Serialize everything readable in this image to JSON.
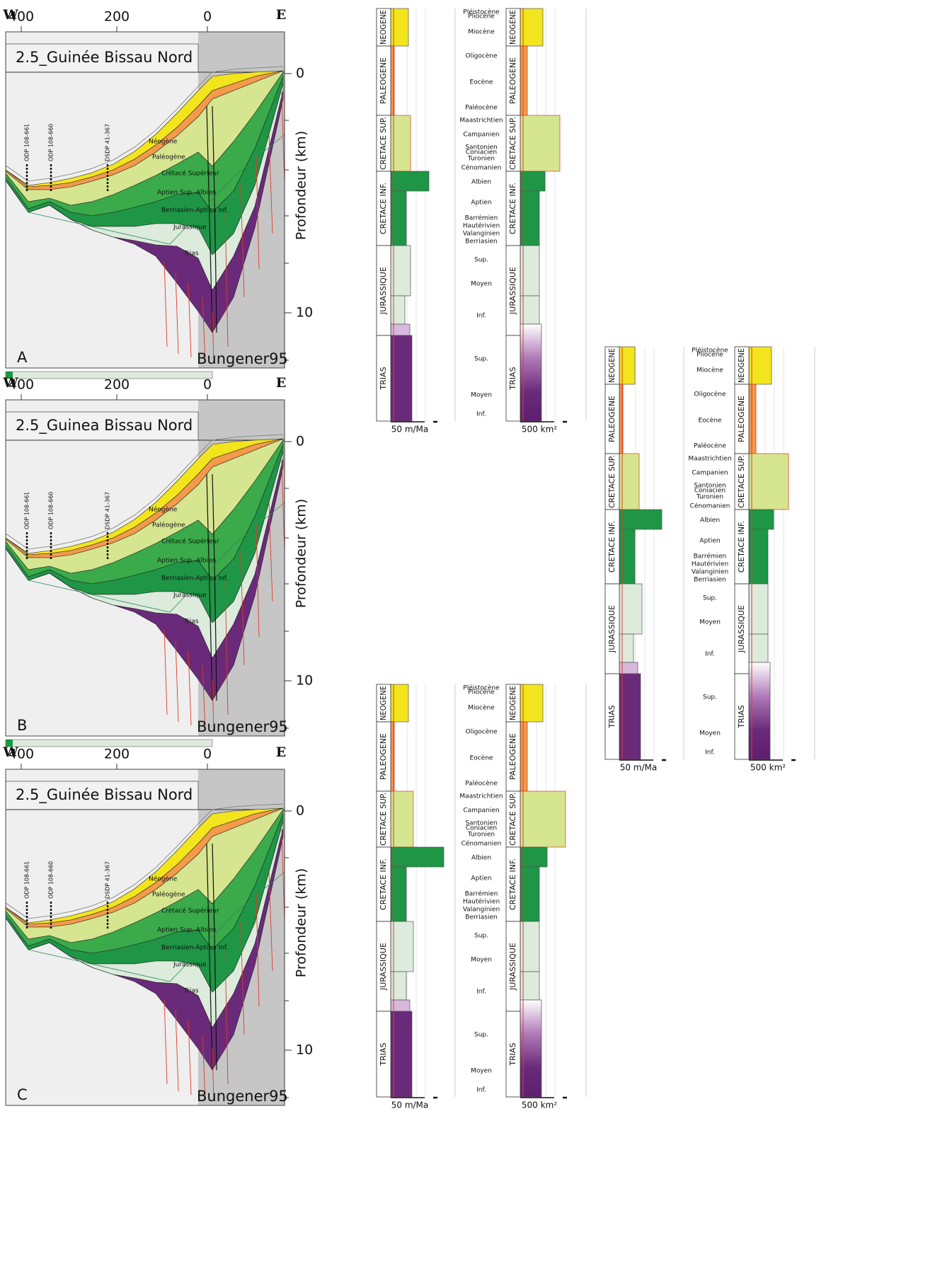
{
  "panels": [
    {
      "label": "A",
      "title": "2.5_Guinée Bissau Nord",
      "source": "Bungener95",
      "west": "W",
      "east": "E",
      "x_ticks": [
        "400",
        "200",
        "0"
      ],
      "y_ticks": [
        "0",
        "10"
      ],
      "y_axis_label": "Profondeur (km)",
      "wells": [
        "ODP 108-661",
        "ODP 108-660",
        "DSDP 41-367"
      ],
      "layers": [
        "Néogène",
        "Paléogène",
        "Crétacé Supérieur",
        "Aptien Sup.-Albien",
        "Berriasien-Aptien Inf.",
        "Jurassique",
        "Trias"
      ]
    },
    {
      "label": "B",
      "title": "2.5_Guinea Bissau Nord",
      "source": "Bungener95",
      "west": "W",
      "east": "E",
      "x_ticks": [
        "400",
        "200",
        "0"
      ],
      "y_ticks": [
        "0",
        "10"
      ],
      "y_axis_label": "Profondeur (km)",
      "wells": [
        "ODP 108-661",
        "ODP 108-660",
        "DSDP 41-367"
      ],
      "layers": [
        "Néogène",
        "Paléogène",
        "Crétacé Supérieur",
        "Aptien Sup.-Albien",
        "Berriasien-Aptien Inf.",
        "Jurassique",
        "Trias"
      ]
    },
    {
      "label": "C",
      "title": "2.5_Guinée Bissau Nord",
      "source": "Bungener95",
      "west": "W",
      "east": "E",
      "x_ticks": [
        "400",
        "200",
        "0"
      ],
      "y_ticks": [
        "0",
        "10"
      ],
      "y_axis_label": "Profondeur (km)",
      "wells": [
        "ODP 108-661",
        "ODP 108-660",
        "DSDP 41-367"
      ],
      "layers": [
        "Néogène",
        "Paléogène",
        "Crétacé Supérieur",
        "Aptien Sup.-Albien",
        "Berriasien-Aptien Inf.",
        "Jurassique",
        "Trias"
      ]
    }
  ],
  "columns": [
    {
      "periods": [
        "NEOGENE",
        "PALEOGENE",
        "CRETACE SUP.",
        "CRETACE INF.",
        "JURASSIQUE",
        "TRIAS"
      ],
      "stages": [
        "Pléistocène",
        "Pliocène",
        "Miocène",
        "Oligocène",
        "Eocène",
        "Paléocène",
        "Maastrichtien",
        "Campanien",
        "Santonien",
        "Coniacien",
        "Turonien",
        "Cénomanien",
        "Albien",
        "Aptien",
        "Barrémien",
        "Hautérivien",
        "Valanginien",
        "Berriasien",
        "Sup.",
        "Moyen",
        "Inf.",
        "Sup.",
        "Moyen",
        "Inf."
      ],
      "rate_scale": "50 m/Ma",
      "area_scale": "500 km²"
    },
    {
      "periods": [
        "NEOGENE",
        "PALEOGENE",
        "CRETACE SUP.",
        "CRETACE INF.",
        "JURASSIQUE",
        "TRIAS"
      ],
      "stages": [
        "Pléistocène",
        "Pliocène",
        "Miocène",
        "Oligocène",
        "Eocène",
        "Paléocène",
        "Maastrichtien",
        "Campanien",
        "Santonien",
        "Coniacien",
        "Turonien",
        "Cénomanien",
        "Albien",
        "Aptien",
        "Barrémien",
        "Hautérivien",
        "Valanginien",
        "Berriasien",
        "Sup.",
        "Moyen",
        "Inf.",
        "Sup.",
        "Moyen",
        "Inf."
      ],
      "rate_scale": "50 m/Ma",
      "area_scale": "500 km²"
    },
    {
      "periods": [
        "NEOGENE",
        "PALEOGENE",
        "CRETACE SUP.",
        "CRETACE INF.",
        "JURASSIQUE",
        "TRIAS"
      ],
      "stages": [
        "Pléistocène",
        "Pliocène",
        "Miocène",
        "Oligocène",
        "Eocène",
        "Paléocène",
        "Maastrichtien",
        "Campanien",
        "Santonien",
        "Coniacien",
        "Turonien",
        "Cénomanien",
        "Albien",
        "Aptien",
        "Barrémien",
        "Hautérivien",
        "Valanginien",
        "Berriasien",
        "Sup.",
        "Moyen",
        "Inf.",
        "Sup.",
        "Moyen",
        "Inf."
      ],
      "rate_scale": "50 m/Ma",
      "area_scale": "500 km²"
    }
  ]
}
